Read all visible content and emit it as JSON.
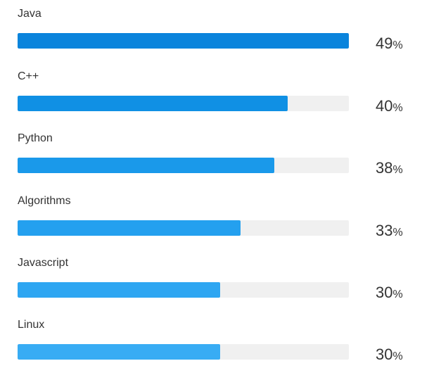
{
  "chart_data": {
    "type": "bar",
    "orientation": "horizontal",
    "categories": [
      "Java",
      "C++",
      "Python",
      "Algorithms",
      "Javascript",
      "Linux"
    ],
    "values": [
      49,
      40,
      38,
      33,
      30,
      30
    ],
    "value_suffix": "%",
    "value_labels": [
      "49",
      "40",
      "38",
      "33",
      "30",
      "30"
    ],
    "xlim": [
      0,
      49
    ],
    "grid": false,
    "bar_colors": [
      "#0a84dc",
      "#1090e4",
      "#1a99ea",
      "#24a0ef",
      "#2ea6f2",
      "#38acf4"
    ],
    "track_color": "#f0f0f0"
  }
}
